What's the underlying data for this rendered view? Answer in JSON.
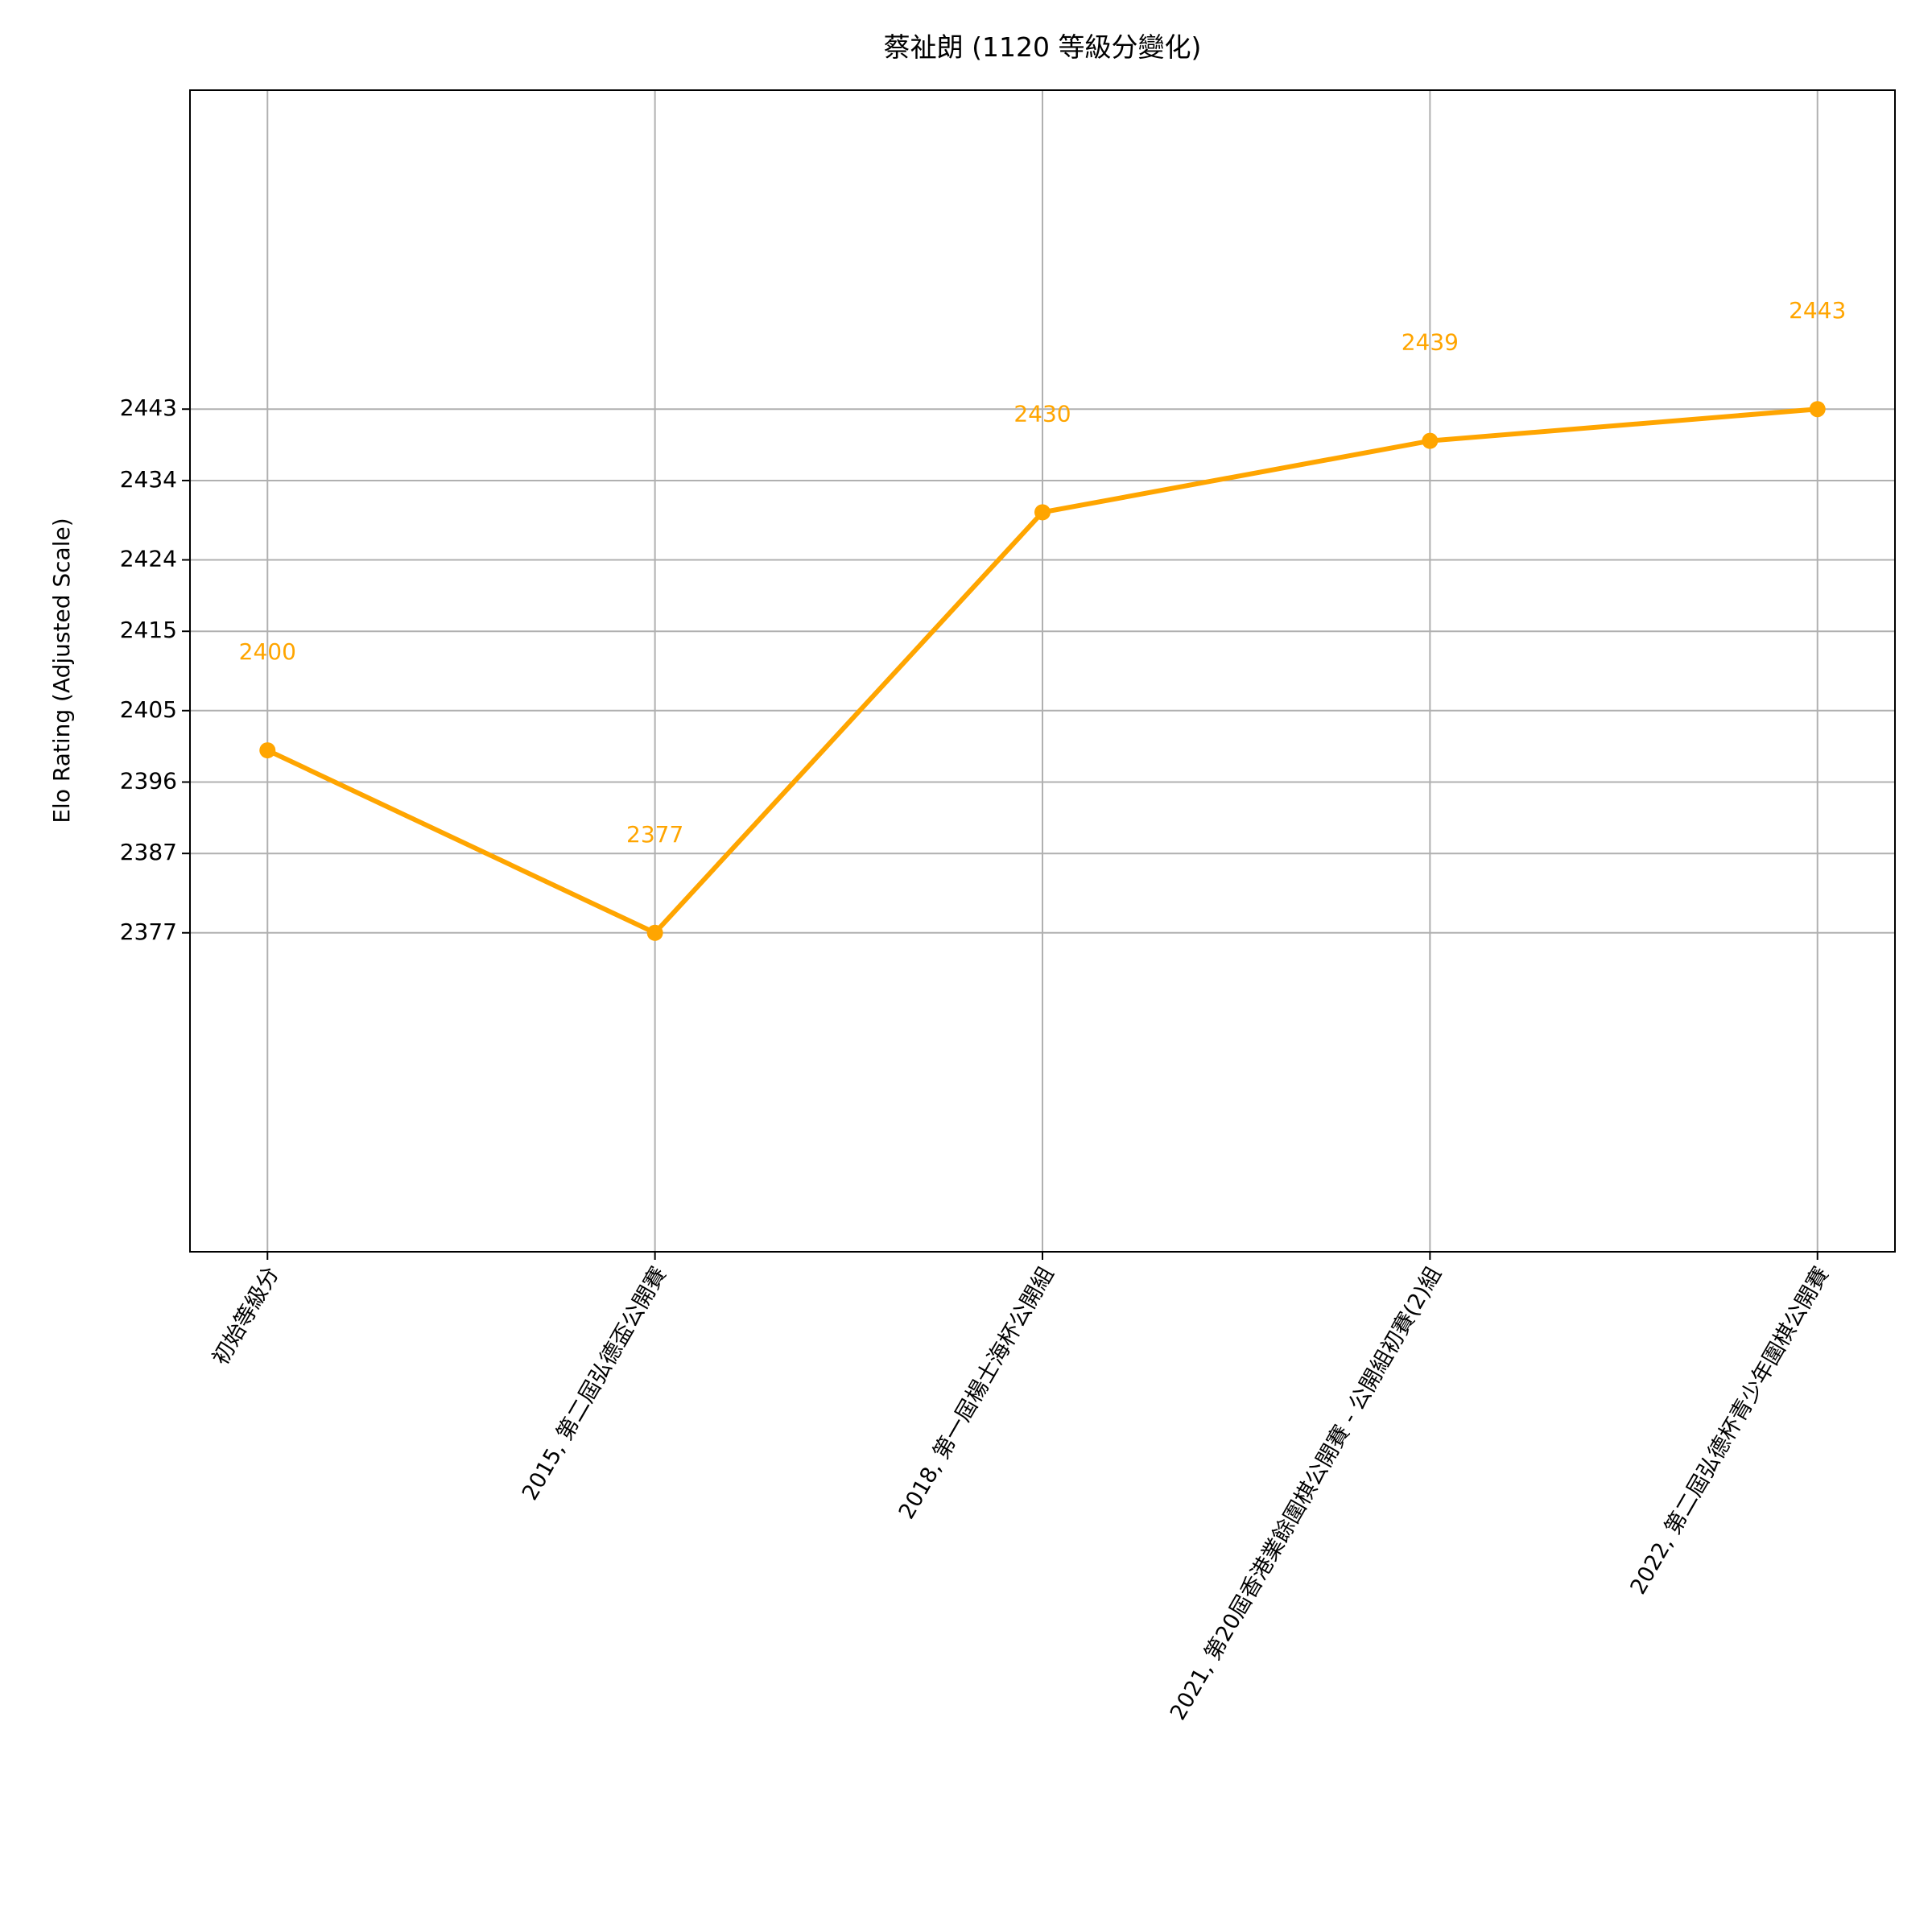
{
  "chart_data": {
    "type": "line",
    "title": "蔡祉朗 (1120 等級分變化)",
    "y_label": "Elo Rating (Adjusted Scale)",
    "categories": [
      "初始等級分",
      "2015, 第二屆弘德盃公開賽",
      "2018, 第一屆楊士海杯公開組",
      "2021, 第20屆香港業餘圍棋公開賽 - 公開組初賽(2)組",
      "2022, 第二屆弘德杯青少年圍棋公開賽"
    ],
    "series": [
      {
        "name": "蔡祉朗",
        "color": "#ffa500",
        "values": [
          2400,
          2377,
          2430,
          2439,
          2443
        ]
      }
    ],
    "ylim": [
      2336.8,
      2483.2
    ],
    "yticks": [
      2377,
      2387,
      2396,
      2405,
      2415,
      2424,
      2434,
      2443
    ],
    "grid": true
  }
}
